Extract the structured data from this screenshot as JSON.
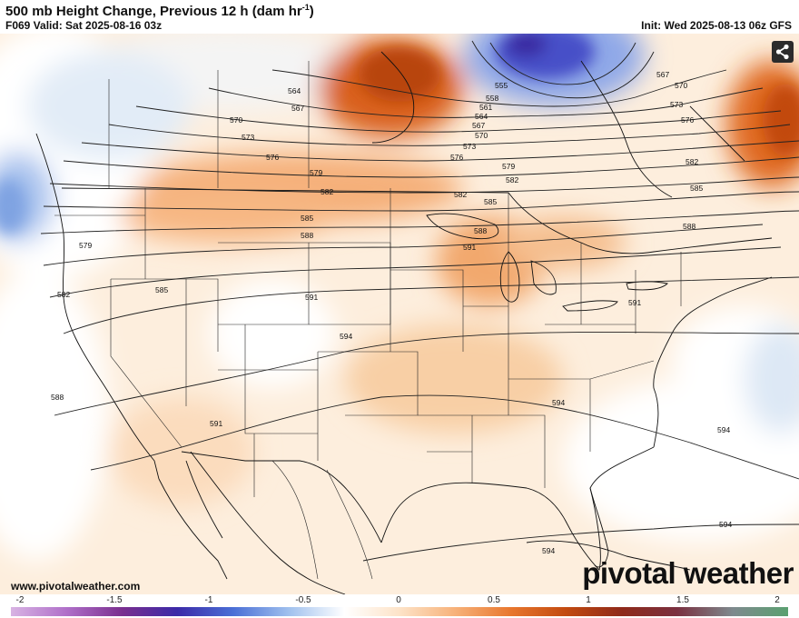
{
  "header": {
    "title_main": "500 mb Height Change, Previous 12 h (dam hr",
    "title_sup": "-1",
    "title_close": ")",
    "valid": "F069 Valid: Sat 2025-08-16 03z",
    "init": "Init: Wed 2025-08-13 06z GFS"
  },
  "footer": {
    "website": "www.pivotalweather.com",
    "brand": "pivotal weather"
  },
  "colorbar": {
    "ticks": [
      "-2",
      "-1.5",
      "-1",
      "-0.5",
      "0",
      "0.5",
      "1",
      "1.5",
      "2"
    ],
    "colors": [
      "#d8b3e3",
      "#b070c9",
      "#7a2f8f",
      "#3b2aa8",
      "#4a6fd6",
      "#9fc0ee",
      "#ffffff",
      "#fde3c8",
      "#f7b27a",
      "#e8772e",
      "#c24a10",
      "#8f2a1a",
      "#7a3040",
      "#7e8a8e",
      "#5aa070"
    ]
  },
  "contours": {
    "labels": [
      "555",
      "558",
      "561",
      "564",
      "564",
      "567",
      "567",
      "567",
      "570",
      "570",
      "570",
      "573",
      "573",
      "573",
      "576",
      "576",
      "576",
      "579",
      "579",
      "579",
      "582",
      "582",
      "582",
      "582",
      "582",
      "585",
      "585",
      "585",
      "585",
      "588",
      "588",
      "588",
      "588",
      "591",
      "591",
      "591",
      "591",
      "594",
      "594",
      "594",
      "594",
      "594"
    ]
  },
  "icons": {
    "share": "share-icon"
  }
}
